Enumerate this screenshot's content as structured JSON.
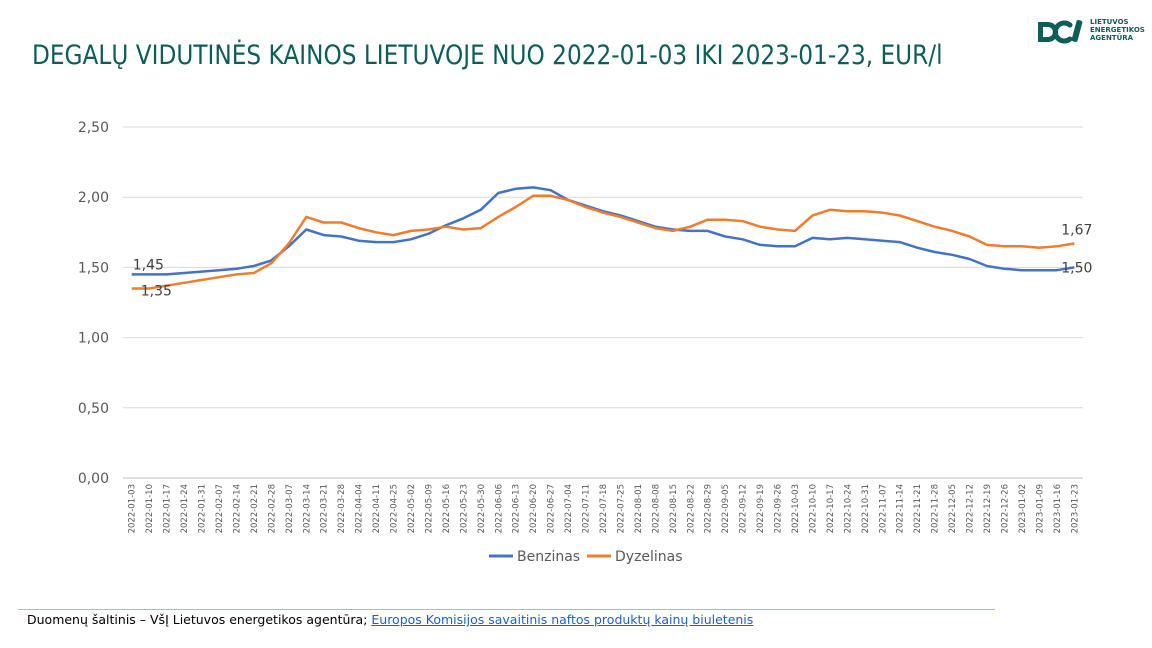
{
  "title": "DEGALŲ VIDUTINĖS KAINOS LIETUVOJE NUO 2022-01-03 IKI 2023-01-23, EUR/l",
  "logo": {
    "lines": [
      "LIETUVOS",
      "ENERGETIKOS",
      "AGENTŪRA"
    ],
    "color": "#0d5e57"
  },
  "footer": {
    "source_label": "Duomenų šaltinis – VšĮ Lietuvos energetikos agentūra; ",
    "link_text": "Europos Komisijos savaitinis naftos produktų kainų biuletenis"
  },
  "chart_data": {
    "type": "line",
    "title": "DEGALŲ VIDUTINĖS KAINOS LIETUVOJE NUO 2022-01-03 IKI 2023-01-23, EUR/l",
    "xlabel": "",
    "ylabel": "",
    "ylim": [
      0,
      2.5
    ],
    "y_ticks": [
      "0,00",
      "0,50",
      "1,00",
      "1,50",
      "2,00",
      "2,50"
    ],
    "grid": true,
    "legend_position": "bottom",
    "x": [
      "2022-01-03",
      "2022-01-10",
      "2022-01-17",
      "2022-01-24",
      "2022-01-31",
      "2022-02-07",
      "2022-02-14",
      "2022-02-21",
      "2022-02-28",
      "2022-03-07",
      "2022-03-14",
      "2022-03-21",
      "2022-03-28",
      "2022-04-04",
      "2022-04-11",
      "2022-04-25",
      "2022-05-02",
      "2022-05-09",
      "2022-05-16",
      "2022-05-23",
      "2022-05-30",
      "2022-06-06",
      "2022-06-13",
      "2022-06-20",
      "2022-06-27",
      "2022-07-04",
      "2022-07-11",
      "2022-07-18",
      "2022-07-25",
      "2022-08-01",
      "2022-08-08",
      "2022-08-15",
      "2022-08-22",
      "2022-08-29",
      "2022-09-05",
      "2022-09-12",
      "2022-09-19",
      "2022-09-26",
      "2022-10-03",
      "2022-10-10",
      "2022-10-17",
      "2022-10-24",
      "2022-10-31",
      "2022-11-07",
      "2022-11-14",
      "2022-11-21",
      "2022-11-28",
      "2022-12-05",
      "2022-12-12",
      "2022-12-19",
      "2022-12-26",
      "2023-01-02",
      "2023-01-09",
      "2023-01-16",
      "2023-01-23"
    ],
    "series": [
      {
        "name": "Benzinas",
        "color": "#4472c4",
        "values": [
          1.45,
          1.45,
          1.45,
          1.46,
          1.47,
          1.48,
          1.49,
          1.51,
          1.55,
          1.65,
          1.77,
          1.73,
          1.72,
          1.69,
          1.68,
          1.68,
          1.7,
          1.74,
          1.8,
          1.85,
          1.91,
          2.03,
          2.06,
          2.07,
          2.05,
          1.98,
          1.94,
          1.9,
          1.87,
          1.83,
          1.79,
          1.77,
          1.76,
          1.76,
          1.72,
          1.7,
          1.66,
          1.65,
          1.65,
          1.71,
          1.7,
          1.71,
          1.7,
          1.69,
          1.68,
          1.64,
          1.61,
          1.59,
          1.56,
          1.51,
          1.49,
          1.48,
          1.48,
          1.48,
          1.5
        ],
        "first_label": "1,45",
        "last_label": "1,50"
      },
      {
        "name": "Dyzelinas",
        "color": "#ed7d31",
        "values": [
          1.35,
          1.35,
          1.37,
          1.39,
          1.41,
          1.43,
          1.45,
          1.46,
          1.53,
          1.67,
          1.86,
          1.82,
          1.82,
          1.78,
          1.75,
          1.73,
          1.76,
          1.77,
          1.79,
          1.77,
          1.78,
          1.86,
          1.93,
          2.01,
          2.01,
          1.98,
          1.93,
          1.89,
          1.86,
          1.82,
          1.78,
          1.76,
          1.79,
          1.84,
          1.84,
          1.83,
          1.79,
          1.77,
          1.76,
          1.87,
          1.91,
          1.9,
          1.9,
          1.89,
          1.87,
          1.83,
          1.79,
          1.76,
          1.72,
          1.66,
          1.65,
          1.65,
          1.64,
          1.65,
          1.67
        ],
        "first_label": "1,35",
        "last_label": "1,67"
      }
    ]
  }
}
